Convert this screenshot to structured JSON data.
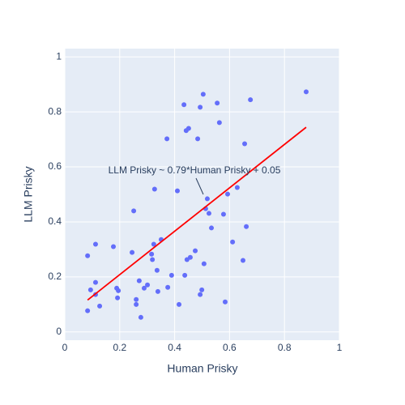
{
  "chart_data": {
    "type": "scatter",
    "xlabel": "Human Prisky",
    "ylabel": "LLM Prisky",
    "annotation": "LLM Prisky ~ 0.79*Human Prisky + 0.05",
    "xlim": [
      0,
      1
    ],
    "ylim": [
      -0.03,
      1.03
    ],
    "xticks": [
      0,
      0.2,
      0.4,
      0.6,
      0.8,
      1
    ],
    "yticks": [
      0,
      0.2,
      0.4,
      0.6,
      0.8,
      1
    ],
    "grid": true,
    "points": {
      "color": "#636efa",
      "x": [
        0.083,
        0.083,
        0.094,
        0.112,
        0.112,
        0.112,
        0.127,
        0.177,
        0.189,
        0.195,
        0.192,
        0.245,
        0.251,
        0.26,
        0.26,
        0.271,
        0.277,
        0.289,
        0.301,
        0.316,
        0.319,
        0.324,
        0.327,
        0.336,
        0.339,
        0.351,
        0.372,
        0.375,
        0.389,
        0.41,
        0.416,
        0.434,
        0.437,
        0.442,
        0.445,
        0.451,
        0.457,
        0.475,
        0.484,
        0.493,
        0.493,
        0.499,
        0.504,
        0.507,
        0.513,
        0.519,
        0.525,
        0.534,
        0.555,
        0.563,
        0.578,
        0.584,
        0.593,
        0.611,
        0.628,
        0.649,
        0.655,
        0.661,
        0.676,
        0.879
      ],
      "y": [
        0.077,
        0.277,
        0.153,
        0.18,
        0.319,
        0.136,
        0.094,
        0.31,
        0.159,
        0.15,
        0.124,
        0.289,
        0.44,
        0.118,
        0.1,
        0.186,
        0.053,
        0.159,
        0.171,
        0.283,
        0.263,
        0.319,
        0.519,
        0.224,
        0.147,
        0.336,
        0.702,
        0.162,
        0.206,
        0.513,
        0.1,
        0.826,
        0.206,
        0.732,
        0.263,
        0.74,
        0.271,
        0.295,
        0.702,
        0.817,
        0.136,
        0.153,
        0.864,
        0.248,
        0.448,
        0.484,
        0.431,
        0.378,
        0.832,
        0.761,
        0.428,
        0.109,
        0.501,
        0.327,
        0.525,
        0.26,
        0.684,
        0.383,
        0.844,
        0.873
      ]
    },
    "fit_line": {
      "color": "#ff0000",
      "x": [
        0.083,
        0.879
      ],
      "y": [
        0.116,
        0.744
      ]
    }
  }
}
